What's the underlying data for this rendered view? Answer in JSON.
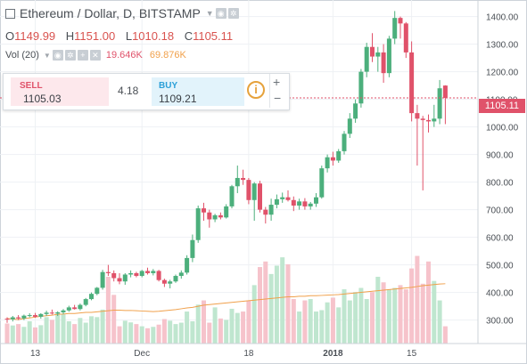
{
  "title": {
    "symbol": "Ethereum / Dollar, D, BITSTAMP"
  },
  "ohlc": {
    "o_label": "O",
    "o": "1149.99",
    "h_label": "H",
    "h": "1151.00",
    "l_label": "L",
    "l": "1010.18",
    "c_label": "C",
    "c": "1105.11"
  },
  "volume": {
    "label": "Vol (20)",
    "v1": "19.646K",
    "v2": "69.876K"
  },
  "trade": {
    "sell_label": "SELL",
    "sell_price": "1105.03",
    "spread": "4.18",
    "buy_label": "BUY",
    "buy_price": "1109.21",
    "plus": "+",
    "minus": "−"
  },
  "last_price_tag": "1105.11",
  "colors": {
    "up": "#4caf7c",
    "down": "#e0526a",
    "vol_up": "#bfe6cf",
    "vol_down": "#f6c3cb",
    "ma": "#f0a04b",
    "grid": "#eef1f4"
  },
  "chart_data": {
    "type": "candlestick",
    "y_ticks": [
      "300.00",
      "400.00",
      "500.00",
      "600.00",
      "700.00",
      "800.00",
      "900.00",
      "1000.00",
      "1100.00",
      "1200.00",
      "1300.00",
      "1400.00"
    ],
    "x_ticks": [
      "13",
      "Dec",
      "18",
      "2018",
      "15"
    ],
    "ylim": [
      215,
      1460
    ],
    "ohlc": [
      [
        305,
        310,
        290,
        303
      ],
      [
        303,
        315,
        295,
        310
      ],
      [
        310,
        318,
        300,
        306
      ],
      [
        306,
        320,
        300,
        316
      ],
      [
        316,
        325,
        310,
        318
      ],
      [
        318,
        326,
        308,
        312
      ],
      [
        312,
        325,
        305,
        322
      ],
      [
        322,
        334,
        315,
        327
      ],
      [
        327,
        338,
        320,
        324
      ],
      [
        324,
        332,
        315,
        328
      ],
      [
        328,
        340,
        322,
        335
      ],
      [
        335,
        352,
        330,
        346
      ],
      [
        346,
        355,
        338,
        340
      ],
      [
        340,
        360,
        335,
        355
      ],
      [
        355,
        380,
        350,
        376
      ],
      [
        376,
        400,
        372,
        395
      ],
      [
        395,
        420,
        390,
        417
      ],
      [
        417,
        482,
        410,
        474
      ],
      [
        474,
        500,
        460,
        470
      ],
      [
        470,
        480,
        440,
        452
      ],
      [
        452,
        470,
        430,
        440
      ],
      [
        440,
        470,
        428,
        465
      ],
      [
        465,
        480,
        455,
        470
      ],
      [
        470,
        475,
        455,
        460
      ],
      [
        460,
        482,
        455,
        478
      ],
      [
        478,
        490,
        465,
        470
      ],
      [
        470,
        485,
        462,
        478
      ],
      [
        478,
        482,
        440,
        445
      ],
      [
        445,
        450,
        420,
        432
      ],
      [
        432,
        446,
        415,
        440
      ],
      [
        440,
        465,
        435,
        460
      ],
      [
        460,
        480,
        450,
        472
      ],
      [
        472,
        535,
        465,
        525
      ],
      [
        525,
        610,
        510,
        590
      ],
      [
        590,
        715,
        580,
        705
      ],
      [
        705,
        725,
        660,
        690
      ],
      [
        690,
        700,
        635,
        665
      ],
      [
        665,
        685,
        655,
        680
      ],
      [
        680,
        690,
        665,
        672
      ],
      [
        672,
        720,
        668,
        712
      ],
      [
        712,
        790,
        705,
        785
      ],
      [
        785,
        860,
        760,
        815
      ],
      [
        815,
        845,
        790,
        808
      ],
      [
        808,
        815,
        720,
        735
      ],
      [
        735,
        800,
        660,
        795
      ],
      [
        795,
        805,
        690,
        700
      ],
      [
        700,
        710,
        650,
        682
      ],
      [
        682,
        740,
        660,
        718
      ],
      [
        718,
        755,
        705,
        738
      ],
      [
        738,
        762,
        725,
        745
      ],
      [
        745,
        770,
        730,
        735
      ],
      [
        735,
        748,
        695,
        715
      ],
      [
        715,
        740,
        700,
        730
      ],
      [
        730,
        742,
        700,
        712
      ],
      [
        712,
        728,
        700,
        722
      ],
      [
        722,
        760,
        710,
        745
      ],
      [
        745,
        860,
        740,
        850
      ],
      [
        850,
        900,
        835,
        890
      ],
      [
        890,
        910,
        860,
        878
      ],
      [
        878,
        920,
        870,
        912
      ],
      [
        912,
        985,
        900,
        975
      ],
      [
        975,
        1050,
        960,
        1030
      ],
      [
        1030,
        1100,
        1015,
        1085
      ],
      [
        1085,
        1210,
        1070,
        1200
      ],
      [
        1200,
        1305,
        1180,
        1290
      ],
      [
        1290,
        1340,
        1235,
        1255
      ],
      [
        1255,
        1290,
        1200,
        1270
      ],
      [
        1270,
        1300,
        1160,
        1195
      ],
      [
        1195,
        1330,
        1180,
        1320
      ],
      [
        1320,
        1420,
        1300,
        1395
      ],
      [
        1395,
        1400,
        1320,
        1375
      ],
      [
        1375,
        1380,
        1250,
        1270
      ],
      [
        1270,
        1310,
        1020,
        1050
      ],
      [
        1050,
        1080,
        860,
        1030
      ],
      [
        1030,
        1040,
        770,
        1025
      ],
      [
        1025,
        1045,
        980,
        1020
      ],
      [
        1020,
        1080,
        1000,
        1030
      ],
      [
        1030,
        1170,
        1010,
        1140
      ],
      [
        1149.99,
        1151.0,
        1010.18,
        1105.11
      ]
    ],
    "volume": [
      72,
      65,
      70,
      60,
      80,
      58,
      66,
      95,
      85,
      110,
      105,
      80,
      70,
      92,
      75,
      98,
      95,
      122,
      240,
      175,
      62,
      82,
      76,
      70,
      62,
      55,
      60,
      68,
      88,
      82,
      70,
      75,
      115,
      80,
      140,
      155,
      75,
      130,
      90,
      85,
      125,
      110,
      115,
      155,
      210,
      275,
      295,
      250,
      280,
      310,
      285,
      160,
      115,
      155,
      160,
      115,
      120,
      148,
      165,
      130,
      195,
      155,
      185,
      200,
      160,
      185,
      240,
      220,
      195,
      200,
      210,
      195,
      270,
      315,
      215,
      295,
      225,
      155,
      62
    ],
    "ma": [
      90,
      88,
      86,
      90,
      92,
      95,
      98,
      100,
      102,
      105,
      106,
      108,
      108,
      110,
      112,
      112,
      114,
      116,
      118,
      120,
      120,
      119,
      119,
      118,
      117,
      116,
      115,
      116,
      118,
      120,
      122,
      125,
      128,
      130,
      134,
      138,
      140,
      142,
      144,
      146,
      148,
      150,
      152,
      154,
      156,
      158,
      160,
      162,
      164,
      166,
      168,
      168,
      170,
      170,
      172,
      172,
      173,
      174,
      175,
      176,
      178,
      180,
      182,
      184,
      186,
      188,
      190,
      192,
      194,
      196,
      198,
      200,
      202,
      205,
      208,
      210,
      212,
      214,
      215
    ],
    "vol_max": 320
  }
}
